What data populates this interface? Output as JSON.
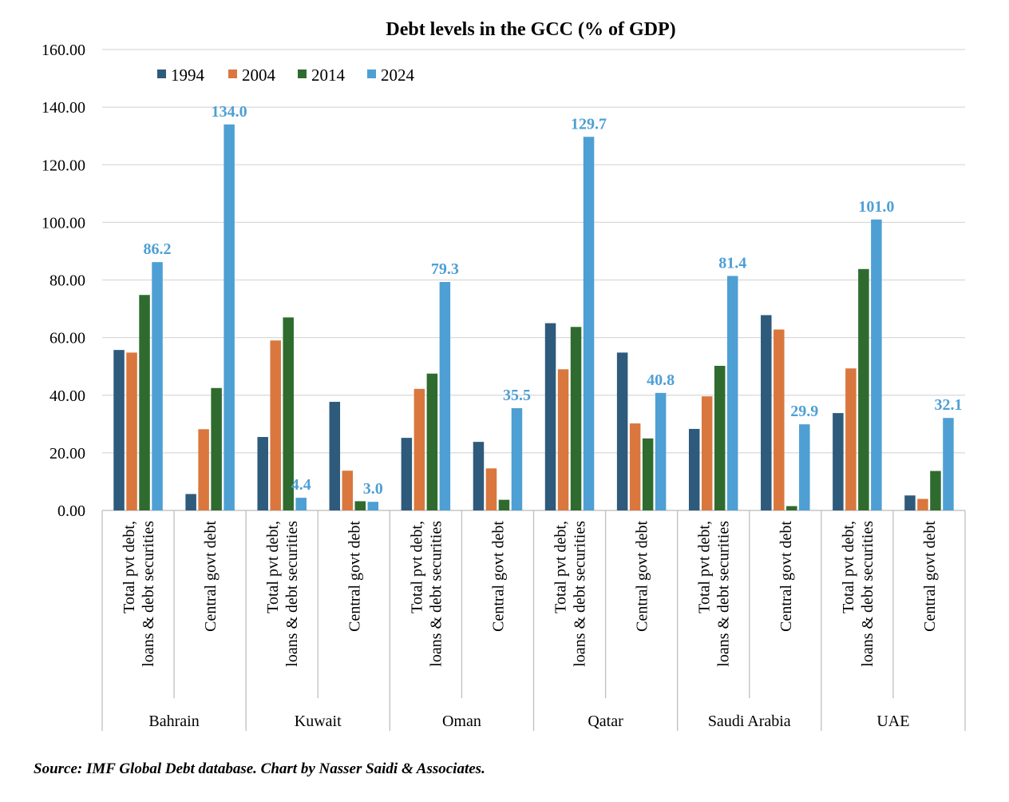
{
  "chart_data": {
    "type": "bar",
    "title": "Debt levels in the GCC (% of GDP)",
    "xlabel": "",
    "ylabel": "",
    "ylim": [
      0,
      160
    ],
    "yticks": [
      "0.00",
      "20.00",
      "40.00",
      "60.00",
      "80.00",
      "100.00",
      "120.00",
      "140.00",
      "160.00"
    ],
    "grid": true,
    "legend_position": "top-left",
    "groups": [
      "Bahrain",
      "Kuwait",
      "Oman",
      "Qatar",
      "Saudi Arabia",
      "UAE"
    ],
    "category_labels": [
      [
        "Total pvt debt,",
        "loans & debt securities"
      ],
      [
        "Central govt debt"
      ]
    ],
    "categories": [
      "Bahrain | Total pvt debt, loans & debt securities",
      "Bahrain | Central govt debt",
      "Kuwait | Total pvt debt, loans & debt securities",
      "Kuwait | Central govt debt",
      "Oman | Total pvt debt, loans & debt securities",
      "Oman | Central govt debt",
      "Qatar | Total pvt debt, loans & debt securities",
      "Qatar | Central govt debt",
      "Saudi Arabia | Total pvt debt, loans & debt securities",
      "Saudi Arabia | Central govt debt",
      "UAE | Total pvt debt, loans & debt securities",
      "UAE | Central govt debt"
    ],
    "series": [
      {
        "name": "1994",
        "color": "#2e5a7c",
        "values": [
          55.7,
          5.7,
          25.5,
          37.7,
          25.2,
          23.8,
          65.0,
          54.8,
          28.3,
          67.8,
          33.8,
          5.2
        ]
      },
      {
        "name": "2004",
        "color": "#d9773e",
        "values": [
          54.8,
          28.2,
          59.0,
          13.8,
          42.2,
          14.6,
          49.0,
          30.2,
          39.6,
          62.8,
          49.3,
          4.0
        ]
      },
      {
        "name": "2014",
        "color": "#2f6b2f",
        "values": [
          74.8,
          42.5,
          67.0,
          3.2,
          47.5,
          3.7,
          63.7,
          25.0,
          50.2,
          1.5,
          83.8,
          13.7
        ]
      },
      {
        "name": "2024",
        "color": "#4e9fd4",
        "values": [
          86.2,
          134.0,
          4.4,
          3.0,
          79.3,
          35.5,
          129.7,
          40.8,
          81.4,
          29.9,
          101.0,
          32.1
        ],
        "labels": [
          "86.2",
          "134.0",
          "4.4",
          "3.0",
          "79.3",
          "35.5",
          "129.7",
          "40.8",
          "81.4",
          "29.9",
          "101.0",
          "32.1"
        ]
      }
    ]
  },
  "source": "Source: IMF Global Debt database. Chart by Nasser Saidi & Associates."
}
